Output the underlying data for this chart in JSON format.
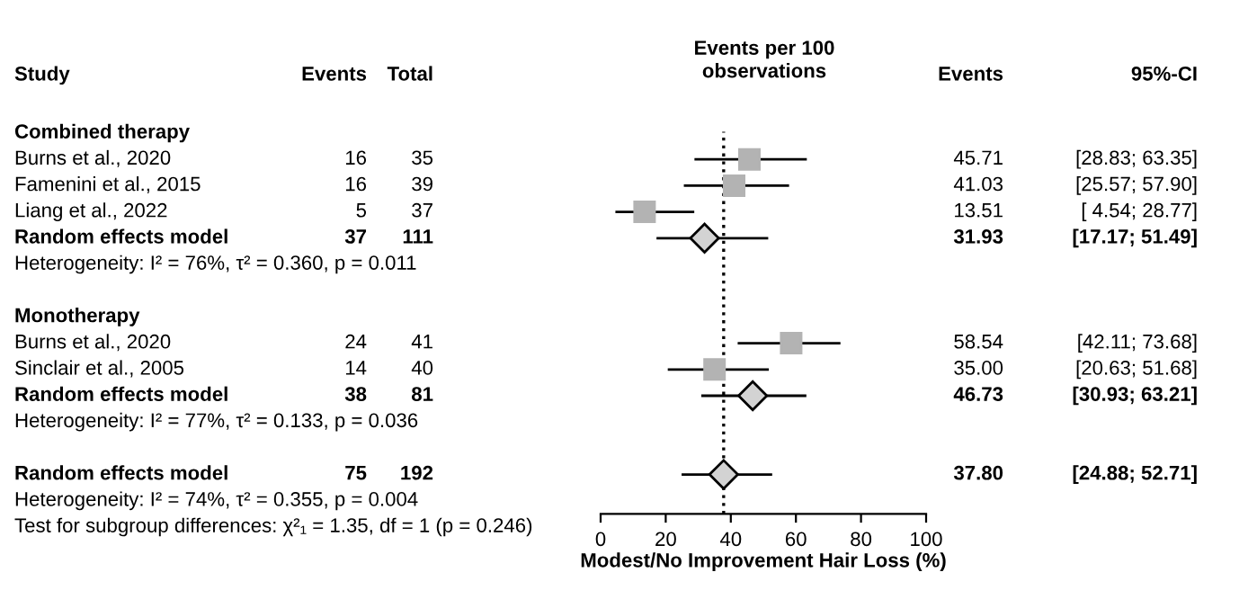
{
  "chart_data": [
    {
      "type": "other",
      "categories": [
        "Study",
        "Events",
        "Total"
      ],
      "y_categories": [
        "Combined therapy",
        "Burns et al., 2020",
        "Famenini et al., 2015",
        "Liang et al., 2022",
        "Random effects model",
        "Heterogeneity: I² = 76%, τ² = 0.360, p = 0.011",
        null,
        "Monotherapy",
        "Burns et al., 2020",
        "Sinclair et al., 2005",
        "Random effects model",
        "Heterogeneity: I² = 77%, τ² = 0.133, p = 0.036",
        null,
        "Random effects model",
        "Heterogeneity: I² = 74%, τ² = 0.355, p = 0.004",
        "Test for subgroup differences: χ²₁ = 1.35, df = 1 (p = 0.246)"
      ],
      "cell_labels": [
        [
          null,
          null
        ],
        [
          "16",
          "35"
        ],
        [
          "16",
          "39"
        ],
        [
          "5",
          "37"
        ],
        [
          "37",
          "111"
        ],
        [
          null,
          null
        ],
        [
          null,
          null
        ],
        [
          null,
          null
        ],
        [
          "24",
          "41"
        ],
        [
          "14",
          "40"
        ],
        [
          "38",
          "81"
        ],
        [
          null,
          null
        ],
        [
          null,
          null
        ],
        [
          "75",
          "192"
        ],
        [
          null,
          null
        ],
        [
          null,
          null
        ]
      ]
    },
    {
      "type": "scatter",
      "orientation": "horizontal",
      "title": "Events per 100\nobservations",
      "xlabel": "Modest/No Improvement Hair Loss (%)",
      "categories": [
        null,
        null,
        null,
        null,
        null,
        null,
        null,
        null,
        null,
        null,
        null,
        null,
        null,
        null,
        null
      ],
      "xlim": [
        0,
        100
      ],
      "xticks": [
        0,
        20,
        40,
        60,
        80,
        100
      ],
      "tick_labels": "x",
      "grid": false,
      "ref_lines": [
        {
          "axis": "x",
          "value": 37.8,
          "color": "#000000",
          "line_style": "dotted"
        }
      ],
      "annotations": [
        "Events",
        "95%-CI"
      ],
      "series": [
        {
          "marker": "square",
          "color": "#b3b3b3",
          "values": [
            null,
            45.71,
            41.03,
            13.51,
            null,
            null,
            null,
            null,
            58.54,
            35.0,
            null,
            null,
            null,
            null,
            null
          ],
          "errors": [
            null,
            [
              28.83,
              63.35
            ],
            [
              25.57,
              57.9
            ],
            [
              4.54,
              28.77
            ],
            null,
            null,
            null,
            null,
            [
              42.11,
              73.68
            ],
            [
              20.63,
              51.68
            ],
            null,
            null,
            null,
            null,
            null
          ],
          "value_labels": [
            null,
            "45.71 [28.83; 63.35]",
            "41.03 [25.57; 57.90]",
            "13.51 [ 4.54; 28.77]",
            null,
            null,
            null,
            null,
            "58.54 [42.11; 73.68]",
            "35.00 [20.63; 51.68]",
            null,
            null,
            null,
            null,
            null
          ]
        },
        {
          "marker": "diamond",
          "color": "#d3d3d3",
          "values": [
            null,
            null,
            null,
            null,
            31.93,
            null,
            null,
            null,
            null,
            null,
            46.73,
            null,
            null,
            37.8,
            null
          ],
          "errors": [
            null,
            null,
            null,
            null,
            [
              17.17,
              51.49
            ],
            null,
            null,
            null,
            null,
            null,
            [
              30.93,
              63.21
            ],
            null,
            null,
            [
              24.88,
              52.71
            ],
            null
          ],
          "value_labels": [
            null,
            null,
            null,
            null,
            "31.93 [17.17; 51.49]",
            null,
            null,
            null,
            null,
            null,
            "46.73 [30.93; 63.21]",
            null,
            null,
            "37.80 [24.88; 52.71]",
            null
          ]
        }
      ]
    }
  ]
}
